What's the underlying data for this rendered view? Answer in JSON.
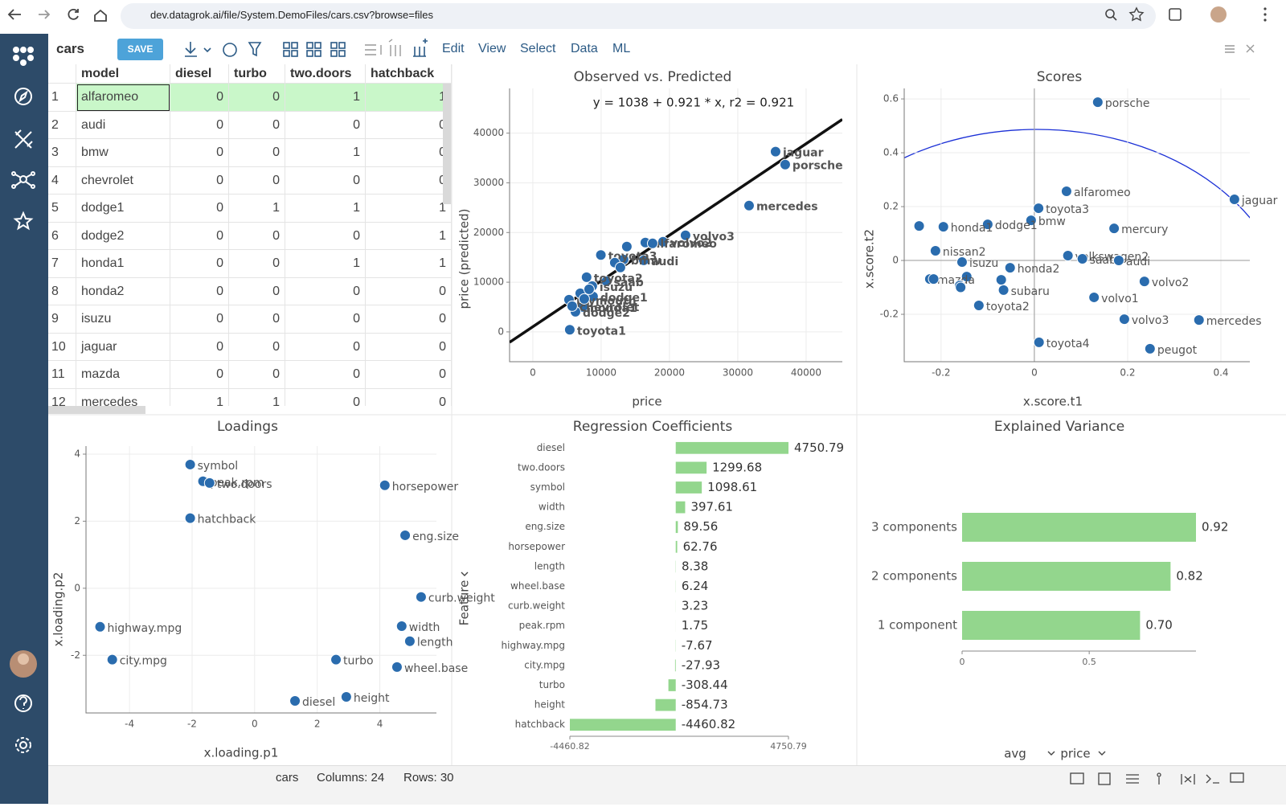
{
  "browser": {
    "url": "dev.datagrok.ai/file/System.DemoFiles/cars.csv?browse=files"
  },
  "toolbar": {
    "title": "cars",
    "save": "SAVE",
    "menus": [
      "Edit",
      "View",
      "Select",
      "Data",
      "ML"
    ]
  },
  "table": {
    "columns": [
      "model",
      "diesel",
      "turbo",
      "two.doors",
      "hatchback"
    ],
    "rows": [
      [
        1,
        "alfaromeo",
        0,
        0,
        1,
        1
      ],
      [
        2,
        "audi",
        0,
        0,
        0,
        0
      ],
      [
        3,
        "bmw",
        0,
        0,
        1,
        0
      ],
      [
        4,
        "chevrolet",
        0,
        0,
        0,
        0
      ],
      [
        5,
        "dodge1",
        0,
        1,
        1,
        1
      ],
      [
        6,
        "dodge2",
        0,
        0,
        0,
        1
      ],
      [
        7,
        "honda1",
        0,
        0,
        1,
        1
      ],
      [
        8,
        "honda2",
        0,
        0,
        0,
        0
      ],
      [
        9,
        "isuzu",
        0,
        0,
        0,
        0
      ],
      [
        10,
        "jaguar",
        0,
        0,
        0,
        0
      ],
      [
        11,
        "mazda",
        0,
        0,
        0,
        0
      ],
      [
        12,
        "mercedes",
        1,
        1,
        0,
        0
      ]
    ]
  },
  "charts": [
    {
      "type": "scatter",
      "title": "Observed vs. Predicted",
      "x_label": "price",
      "y_label": "price (predicted)",
      "annotation": "y = 1038 + 0.921 * x,    r2 = 0.921",
      "fit": {
        "intercept": 1038,
        "slope": 0.921
      },
      "color": "#2a6cae",
      "grid": true,
      "xlim": [
        -3400,
        45300
      ],
      "ylim": [
        -6000,
        49000
      ],
      "xticks": [
        0,
        10000,
        20000,
        30000,
        40000
      ],
      "yticks": [
        0,
        10000,
        20000,
        30000,
        40000
      ],
      "labels": [
        "jaguar",
        "porsche",
        "mercedes",
        "volvo3",
        "volvo2",
        "alfaromeo",
        "audi",
        "bmw",
        "saab",
        "toyota3",
        "toyota2",
        "isuzu",
        "dodge1",
        "honda1",
        "plymouth",
        "dodge2",
        "chevrolet",
        "toyota1",
        null,
        null,
        null,
        null,
        null,
        null,
        null
      ],
      "x": [
        35530,
        36940,
        31650,
        22350,
        19060,
        16470,
        16240,
        13290,
        10780,
        9960,
        7870,
        8700,
        8820,
        7290,
        5300,
        6240,
        5760,
        5410,
        13760,
        12000,
        12820,
        17530,
        6940,
        7530,
        8240
      ],
      "y": [
        36280,
        33680,
        25430,
        19430,
        18140,
        17980,
        14410,
        14570,
        10200,
        15470,
        11010,
        9230,
        7130,
        5020,
        6480,
        4050,
        5180,
        430,
        17170,
        13930,
        12960,
        17810,
        7770,
        6640,
        8580
      ]
    },
    {
      "type": "scatter",
      "title": "Scores",
      "x_label": "x.score.t1",
      "y_label": "x.score.t2",
      "color": "#2a6cae",
      "grid": true,
      "zero_lines": true,
      "xlim": [
        -0.279,
        0.462
      ],
      "ylim": [
        -0.376,
        0.639
      ],
      "xticks": [
        -0.2,
        0,
        0.2,
        0.4
      ],
      "yticks": [
        -0.2,
        0,
        0.2,
        0.4,
        0.6
      ],
      "labels": [
        "porsche",
        "alfaromeo",
        "jaguar",
        "toyota3",
        "bmw",
        "dodge1",
        "honda1",
        null,
        "mercury",
        "nissan2",
        "volkswagen2",
        "saab",
        "audi",
        "isuzu",
        "honda2",
        null,
        "mazda",
        null,
        null,
        null,
        null,
        "subaru",
        "volvo2",
        "volvo1",
        "toyota2",
        "volvo3",
        "mercedes",
        "toyota4",
        "peugot"
      ],
      "x": [
        0.136,
        0.069,
        0.429,
        0.009,
        -0.007,
        -0.1,
        -0.195,
        -0.247,
        0.171,
        -0.212,
        0.072,
        0.103,
        0.181,
        -0.155,
        -0.052,
        -0.145,
        -0.224,
        -0.216,
        -0.16,
        -0.158,
        -0.071,
        -0.066,
        0.236,
        0.128,
        -0.119,
        0.193,
        0.353,
        0.01,
        0.248
      ],
      "y": [
        0.588,
        0.257,
        0.227,
        0.194,
        0.149,
        0.134,
        0.125,
        0.128,
        0.119,
        0.036,
        0.018,
        0.006,
        0,
        -0.006,
        -0.027,
        -0.06,
        -0.069,
        -0.069,
        -0.093,
        -0.1,
        -0.072,
        -0.11,
        -0.078,
        -0.137,
        -0.167,
        -0.218,
        -0.221,
        -0.304,
        -0.328
      ]
    },
    {
      "type": "scatter",
      "title": "Loadings",
      "x_label": "x.loading.p1",
      "y_label": "x.loading.p2",
      "color": "#2a6cae",
      "grid": true,
      "xlim": [
        -5.39,
        5.81
      ],
      "ylim": [
        -3.72,
        4.24
      ],
      "xticks": [
        -4,
        -2,
        0,
        2,
        4
      ],
      "yticks": [
        -2,
        0,
        2,
        4
      ],
      "labels": [
        "symbol",
        "peak.rpm",
        "two.doors",
        "hatchback",
        "horsepower",
        "eng.size",
        "curb.weight",
        "width",
        "length",
        "highway.mpg",
        "city.mpg",
        "turbo",
        "wheel.base",
        "height",
        "diesel"
      ],
      "x": [
        -2.06,
        -1.65,
        -1.44,
        -2.06,
        4.16,
        4.81,
        5.32,
        4.7,
        4.96,
        -4.94,
        -4.55,
        2.6,
        4.55,
        2.93,
        1.29
      ],
      "y": [
        3.69,
        3.19,
        3.14,
        2.09,
        3.07,
        1.58,
        -0.26,
        -1.13,
        -1.58,
        -1.15,
        -2.13,
        -2.13,
        -2.35,
        -3.24,
        -3.36
      ]
    },
    {
      "type": "hbar",
      "title": "Regression Coefficients",
      "y_label": "Feature",
      "color": "#93d68d",
      "categories": [
        "diesel",
        "two.doors",
        "symbol",
        "width",
        "eng.size",
        "horsepower",
        "length",
        "wheel.base",
        "curb.weight",
        "peak.rpm",
        "highway.mpg",
        "city.mpg",
        "turbo",
        "height",
        "hatchback"
      ],
      "values": [
        4750.79,
        1299.68,
        1098.61,
        397.61,
        89.56,
        62.76,
        8.38,
        6.24,
        3.23,
        1.75,
        -7.67,
        -27.93,
        -308.44,
        -854.73,
        -4460.82
      ],
      "xlim": [
        -4460.82,
        4750.79
      ],
      "xticks": [
        -4460.82,
        4750.79
      ]
    },
    {
      "type": "hbar",
      "title": "Explained Variance",
      "color": "#93d68d",
      "controls": [
        "avg",
        "price"
      ],
      "categories": [
        "3 components",
        "2 components",
        "1 component"
      ],
      "values": [
        0.92,
        0.82,
        0.7
      ],
      "value_labels": [
        "0.92",
        "0.82",
        "0.70"
      ],
      "xlim": [
        0,
        0.92
      ],
      "xticks": [
        0,
        0.5
      ]
    }
  ],
  "status": {
    "table": "cars",
    "columns": "Columns: 24",
    "rows": "Rows: 30"
  }
}
